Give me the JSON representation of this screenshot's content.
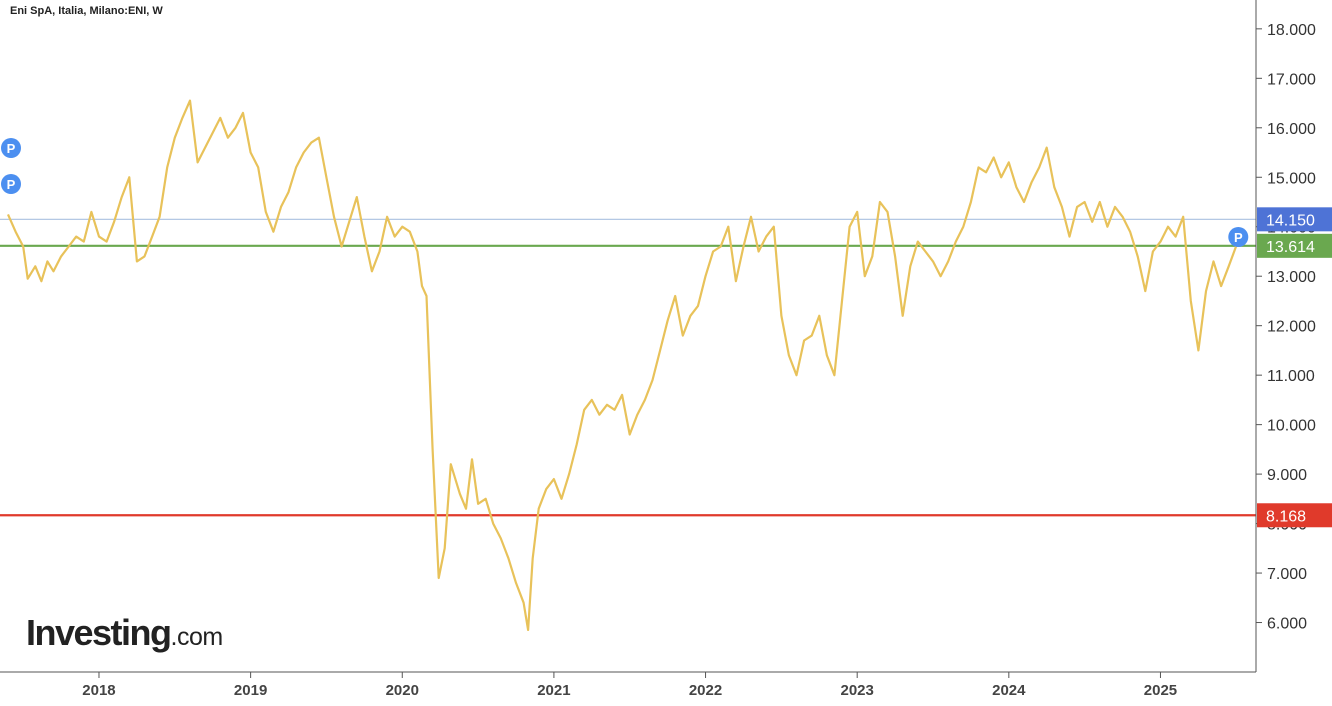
{
  "header": {
    "title": "Eni SpA, Italia, Milano:ENI, W"
  },
  "logo": {
    "brand": "Investing",
    "suffix": ".com"
  },
  "colors": {
    "price_line": "#e8c25a",
    "resistance": "#a9c1e0",
    "current": "#6aa84f",
    "support": "#e03a2b",
    "marker": "#4c8ff0",
    "resistance_tag": "#4e73d6"
  },
  "markers": {
    "label": "P"
  },
  "chart_data": {
    "type": "line",
    "title": "Eni SpA, Italia, Milano:ENI, W",
    "xlabel": "",
    "ylabel": "",
    "ylim": [
      5.0,
      18.3
    ],
    "x_range": [
      2017.4,
      2025.63
    ],
    "x_ticks": [
      {
        "value": 2018,
        "label": "2018"
      },
      {
        "value": 2019,
        "label": "2019"
      },
      {
        "value": 2020,
        "label": "2020"
      },
      {
        "value": 2021,
        "label": "2021"
      },
      {
        "value": 2022,
        "label": "2022"
      },
      {
        "value": 2023,
        "label": "2023"
      },
      {
        "value": 2024,
        "label": "2024"
      },
      {
        "value": 2025,
        "label": "2025"
      }
    ],
    "y_ticks": [
      {
        "value": 6,
        "label": "6.000"
      },
      {
        "value": 7,
        "label": "7.000"
      },
      {
        "value": 8,
        "label": "8.000"
      },
      {
        "value": 9,
        "label": "9.000"
      },
      {
        "value": 10,
        "label": "10.000"
      },
      {
        "value": 11,
        "label": "11.000"
      },
      {
        "value": 12,
        "label": "12.000"
      },
      {
        "value": 13,
        "label": "13.000"
      },
      {
        "value": 14,
        "label": "14.000"
      },
      {
        "value": 15,
        "label": "15.000"
      },
      {
        "value": 16,
        "label": "16.000"
      },
      {
        "value": 17,
        "label": "17.000"
      },
      {
        "value": 18,
        "label": "18.000"
      }
    ],
    "horizontal_lines": [
      {
        "value": 14.15,
        "label": "14.150",
        "role": "resistance"
      },
      {
        "value": 13.614,
        "label": "13.614",
        "role": "current"
      },
      {
        "value": 8.168,
        "label": "8.168",
        "role": "support"
      }
    ],
    "series": [
      {
        "points": [
          [
            2017.4,
            14.25
          ],
          [
            2017.45,
            13.9
          ],
          [
            2017.5,
            13.6
          ],
          [
            2017.53,
            12.95
          ],
          [
            2017.58,
            13.2
          ],
          [
            2017.62,
            12.9
          ],
          [
            2017.66,
            13.3
          ],
          [
            2017.7,
            13.1
          ],
          [
            2017.75,
            13.4
          ],
          [
            2017.8,
            13.6
          ],
          [
            2017.85,
            13.8
          ],
          [
            2017.9,
            13.7
          ],
          [
            2017.95,
            14.3
          ],
          [
            2018.0,
            13.8
          ],
          [
            2018.05,
            13.7
          ],
          [
            2018.1,
            14.1
          ],
          [
            2018.15,
            14.6
          ],
          [
            2018.2,
            15.0
          ],
          [
            2018.25,
            13.3
          ],
          [
            2018.3,
            13.4
          ],
          [
            2018.35,
            13.8
          ],
          [
            2018.4,
            14.2
          ],
          [
            2018.45,
            15.2
          ],
          [
            2018.5,
            15.8
          ],
          [
            2018.55,
            16.2
          ],
          [
            2018.6,
            16.55
          ],
          [
            2018.65,
            15.3
          ],
          [
            2018.7,
            15.6
          ],
          [
            2018.75,
            15.9
          ],
          [
            2018.8,
            16.2
          ],
          [
            2018.85,
            15.8
          ],
          [
            2018.9,
            16.0
          ],
          [
            2018.95,
            16.3
          ],
          [
            2019.0,
            15.5
          ],
          [
            2019.05,
            15.2
          ],
          [
            2019.1,
            14.3
          ],
          [
            2019.15,
            13.9
          ],
          [
            2019.2,
            14.4
          ],
          [
            2019.25,
            14.7
          ],
          [
            2019.3,
            15.2
          ],
          [
            2019.35,
            15.5
          ],
          [
            2019.4,
            15.7
          ],
          [
            2019.45,
            15.8
          ],
          [
            2019.5,
            15.0
          ],
          [
            2019.55,
            14.2
          ],
          [
            2019.6,
            13.6
          ],
          [
            2019.65,
            14.1
          ],
          [
            2019.7,
            14.6
          ],
          [
            2019.75,
            13.8
          ],
          [
            2019.8,
            13.1
          ],
          [
            2019.85,
            13.5
          ],
          [
            2019.9,
            14.2
          ],
          [
            2019.95,
            13.8
          ],
          [
            2020.0,
            14.0
          ],
          [
            2020.05,
            13.9
          ],
          [
            2020.1,
            13.5
          ],
          [
            2020.13,
            12.8
          ],
          [
            2020.16,
            12.6
          ],
          [
            2020.2,
            9.5
          ],
          [
            2020.24,
            6.9
          ],
          [
            2020.28,
            7.5
          ],
          [
            2020.32,
            9.2
          ],
          [
            2020.38,
            8.6
          ],
          [
            2020.42,
            8.3
          ],
          [
            2020.46,
            9.3
          ],
          [
            2020.5,
            8.4
          ],
          [
            2020.55,
            8.5
          ],
          [
            2020.6,
            8.0
          ],
          [
            2020.65,
            7.7
          ],
          [
            2020.7,
            7.3
          ],
          [
            2020.75,
            6.8
          ],
          [
            2020.8,
            6.4
          ],
          [
            2020.83,
            5.85
          ],
          [
            2020.86,
            7.3
          ],
          [
            2020.9,
            8.3
          ],
          [
            2020.95,
            8.7
          ],
          [
            2021.0,
            8.9
          ],
          [
            2021.05,
            8.5
          ],
          [
            2021.1,
            9.0
          ],
          [
            2021.15,
            9.6
          ],
          [
            2021.2,
            10.3
          ],
          [
            2021.25,
            10.5
          ],
          [
            2021.3,
            10.2
          ],
          [
            2021.35,
            10.4
          ],
          [
            2021.4,
            10.3
          ],
          [
            2021.45,
            10.6
          ],
          [
            2021.5,
            9.8
          ],
          [
            2021.55,
            10.2
          ],
          [
            2021.6,
            10.5
          ],
          [
            2021.65,
            10.9
          ],
          [
            2021.7,
            11.5
          ],
          [
            2021.75,
            12.1
          ],
          [
            2021.8,
            12.6
          ],
          [
            2021.85,
            11.8
          ],
          [
            2021.9,
            12.2
          ],
          [
            2021.95,
            12.4
          ],
          [
            2022.0,
            13.0
          ],
          [
            2022.05,
            13.5
          ],
          [
            2022.1,
            13.6
          ],
          [
            2022.15,
            14.0
          ],
          [
            2022.2,
            12.9
          ],
          [
            2022.25,
            13.6
          ],
          [
            2022.3,
            14.2
          ],
          [
            2022.35,
            13.5
          ],
          [
            2022.4,
            13.8
          ],
          [
            2022.45,
            14.0
          ],
          [
            2022.5,
            12.2
          ],
          [
            2022.55,
            11.4
          ],
          [
            2022.6,
            11.0
          ],
          [
            2022.65,
            11.7
          ],
          [
            2022.7,
            11.8
          ],
          [
            2022.75,
            12.2
          ],
          [
            2022.8,
            11.4
          ],
          [
            2022.85,
            11.0
          ],
          [
            2022.9,
            12.5
          ],
          [
            2022.95,
            14.0
          ],
          [
            2023.0,
            14.3
          ],
          [
            2023.05,
            13.0
          ],
          [
            2023.1,
            13.4
          ],
          [
            2023.15,
            14.5
          ],
          [
            2023.2,
            14.3
          ],
          [
            2023.25,
            13.4
          ],
          [
            2023.3,
            12.2
          ],
          [
            2023.35,
            13.2
          ],
          [
            2023.4,
            13.7
          ],
          [
            2023.45,
            13.5
          ],
          [
            2023.5,
            13.3
          ],
          [
            2023.55,
            13.0
          ],
          [
            2023.6,
            13.3
          ],
          [
            2023.65,
            13.7
          ],
          [
            2023.7,
            14.0
          ],
          [
            2023.75,
            14.5
          ],
          [
            2023.8,
            15.2
          ],
          [
            2023.85,
            15.1
          ],
          [
            2023.9,
            15.4
          ],
          [
            2023.95,
            15.0
          ],
          [
            2024.0,
            15.3
          ],
          [
            2024.05,
            14.8
          ],
          [
            2024.1,
            14.5
          ],
          [
            2024.15,
            14.9
          ],
          [
            2024.2,
            15.2
          ],
          [
            2024.25,
            15.6
          ],
          [
            2024.3,
            14.8
          ],
          [
            2024.35,
            14.4
          ],
          [
            2024.4,
            13.8
          ],
          [
            2024.45,
            14.4
          ],
          [
            2024.5,
            14.5
          ],
          [
            2024.55,
            14.1
          ],
          [
            2024.6,
            14.5
          ],
          [
            2024.65,
            14.0
          ],
          [
            2024.7,
            14.4
          ],
          [
            2024.75,
            14.2
          ],
          [
            2024.8,
            13.9
          ],
          [
            2024.85,
            13.4
          ],
          [
            2024.9,
            12.7
          ],
          [
            2024.95,
            13.5
          ],
          [
            2025.0,
            13.7
          ],
          [
            2025.05,
            14.0
          ],
          [
            2025.1,
            13.8
          ],
          [
            2025.15,
            14.2
          ],
          [
            2025.2,
            12.5
          ],
          [
            2025.25,
            11.5
          ],
          [
            2025.3,
            12.7
          ],
          [
            2025.35,
            13.3
          ],
          [
            2025.4,
            12.8
          ],
          [
            2025.45,
            13.2
          ],
          [
            2025.5,
            13.614
          ]
        ]
      }
    ]
  }
}
